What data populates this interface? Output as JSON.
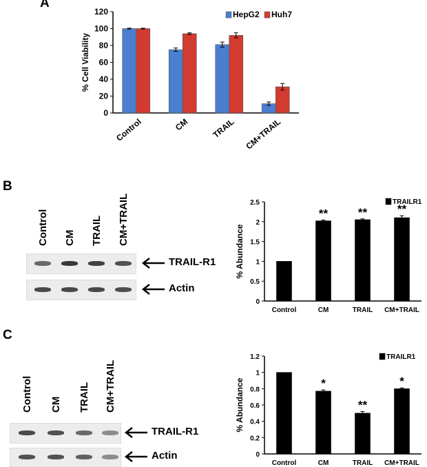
{
  "panels": {
    "a_label": "A",
    "b_label": "B",
    "c_label": "C"
  },
  "colors": {
    "hepg2": "#4a7fd0",
    "huh7": "#d23b30",
    "black": "#000000"
  },
  "chart_data": [
    {
      "id": "A",
      "type": "bar",
      "categories": [
        "Control",
        "CM",
        "TRAIL",
        "CM+TRAIL"
      ],
      "series": [
        {
          "name": "HepG2",
          "values": [
            100,
            75,
            81,
            11
          ],
          "errors": [
            0.5,
            2,
            3,
            2
          ]
        },
        {
          "name": "Huh7",
          "values": [
            100,
            94,
            92,
            31
          ],
          "errors": [
            0.5,
            1,
            3,
            4
          ]
        }
      ],
      "ylabel": "% Cell Viability",
      "ylim": [
        0,
        120
      ],
      "yticks": [
        "0",
        "20",
        "40",
        "60",
        "80",
        "100",
        "120"
      ],
      "legend": "top-right"
    },
    {
      "id": "B",
      "type": "bar",
      "categories": [
        "Control",
        "CM",
        "TRAIL",
        "CM+TRAIL"
      ],
      "series": [
        {
          "name": "TRAILR1",
          "values": [
            1.0,
            2.02,
            2.05,
            2.1
          ],
          "errors": [
            0,
            0.02,
            0.02,
            0.05
          ]
        }
      ],
      "annotations": [
        "",
        "**",
        "**",
        "**"
      ],
      "ylabel": "% Abundance",
      "ylim": [
        0,
        2.5
      ],
      "yticks": [
        "0",
        "0.5",
        "1",
        "1.5",
        "2",
        "2.5"
      ],
      "legend": "top-right"
    },
    {
      "id": "C",
      "type": "bar",
      "categories": [
        "Control",
        "CM",
        "TRAIL",
        "CM+TRAIL"
      ],
      "series": [
        {
          "name": "TRAILR1",
          "values": [
            1.0,
            0.77,
            0.5,
            0.8
          ],
          "errors": [
            0,
            0.015,
            0.02,
            0.01
          ]
        }
      ],
      "annotations": [
        "",
        "*",
        "**",
        "*"
      ],
      "ylabel": "% Abundance",
      "ylim": [
        0,
        1.2
      ],
      "yticks": [
        "0",
        "0.2",
        "0.4",
        "0.6",
        "0.8",
        "1",
        "1.2"
      ],
      "legend": "top-right"
    }
  ],
  "blots": {
    "lanes": [
      "Control",
      "CM",
      "TRAIL",
      "CM+TRAIL"
    ],
    "b_rows": [
      "TRAIL-R1",
      "Actin"
    ],
    "c_rows": [
      "TRAIL-R1",
      "Actin"
    ],
    "b_intensity": {
      "trail_r1": [
        0.55,
        0.85,
        0.8,
        0.7
      ],
      "actin": [
        0.75,
        0.75,
        0.75,
        0.72
      ]
    },
    "c_intensity": {
      "trail_r1": [
        0.75,
        0.7,
        0.55,
        0.35
      ],
      "actin": [
        0.7,
        0.7,
        0.6,
        0.35
      ]
    }
  }
}
